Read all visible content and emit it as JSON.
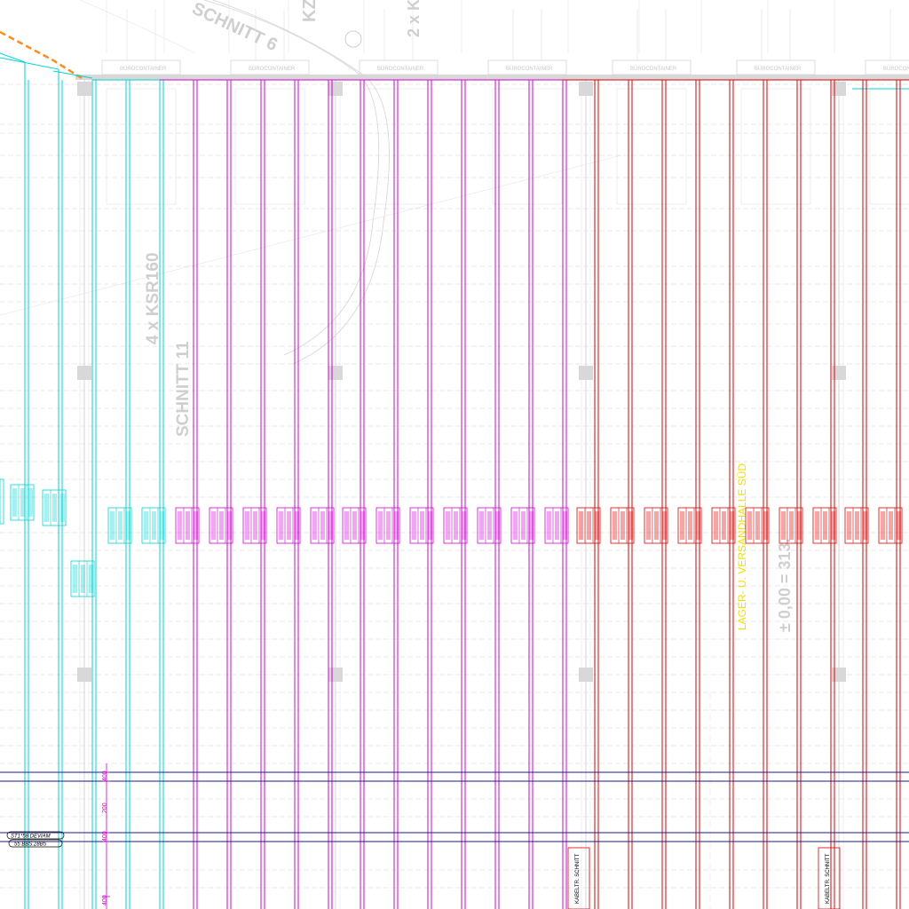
{
  "drawing": {
    "background_labels": {
      "schnitt_top": "SCHNITT 6",
      "kz": "KZ",
      "two_x": "2 x K",
      "four_x_ksr": "4 x KSR160",
      "schnitt_11": "SCHNITT 11",
      "lager_versand": "LAGER- U. VERSANDHALLE SÜD",
      "elevation": "± 0,00 = 313.",
      "buerocontainer": "BÜROCONTAINER"
    },
    "dim_labels": {
      "d1": "400",
      "d2": "200",
      "d3": "400",
      "d4": "400"
    },
    "left_tags": {
      "t1": "ST1*58 DEVIAM",
      "t2": "55 BBS.28B5"
    },
    "bottom_tags": {
      "b1": "KABELTR. SCHNITT",
      "b2": "KABELTR. SCHNITT"
    },
    "colors": {
      "cyan": "#00d4d4",
      "magenta": "#d400d4",
      "red": "#e00000",
      "navy": "#1a1a8c",
      "yellow": "#f0e000",
      "grey": "#cccccc",
      "orange": "#ff8c1a"
    },
    "cable_groups": [
      {
        "color_key": "cyan",
        "count": 2
      },
      {
        "color_key": "magenta",
        "count": 12
      },
      {
        "color_key": "red",
        "count": 10
      }
    ]
  }
}
